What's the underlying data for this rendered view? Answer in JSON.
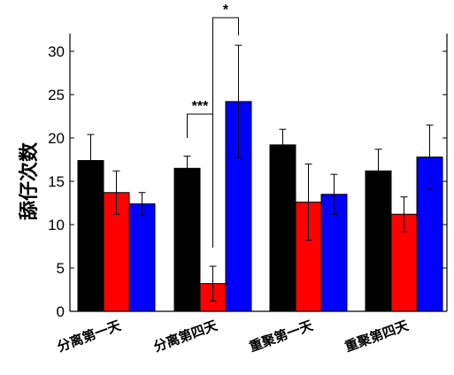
{
  "chart_data": {
    "type": "bar",
    "title": "",
    "xlabel": "",
    "ylabel": "舔仔次数",
    "ylim": [
      0,
      32
    ],
    "yticks": [
      0,
      5,
      10,
      15,
      20,
      25,
      30
    ],
    "grid": false,
    "categories": [
      "分离第一天",
      "分离第四天",
      "重聚第一天",
      "重聚第四天"
    ],
    "series": [
      {
        "color": "#000000",
        "values": [
          17.4,
          16.5,
          19.2,
          16.2
        ],
        "errors": [
          3.0,
          1.4,
          1.8,
          2.5
        ]
      },
      {
        "color": "#ff0000",
        "values": [
          13.7,
          3.2,
          12.6,
          11.2
        ],
        "errors": [
          2.5,
          2.0,
          4.4,
          2.0
        ]
      },
      {
        "color": "#0000ff",
        "values": [
          12.4,
          24.2,
          13.5,
          17.8
        ],
        "errors": [
          1.3,
          6.5,
          2.3,
          3.7
        ]
      }
    ],
    "annotations": [
      {
        "text": "***",
        "group": 1,
        "from_series": 0,
        "to_series": 1
      },
      {
        "text": "*",
        "group": 1,
        "from_series": 1,
        "to_series": 2
      }
    ]
  }
}
